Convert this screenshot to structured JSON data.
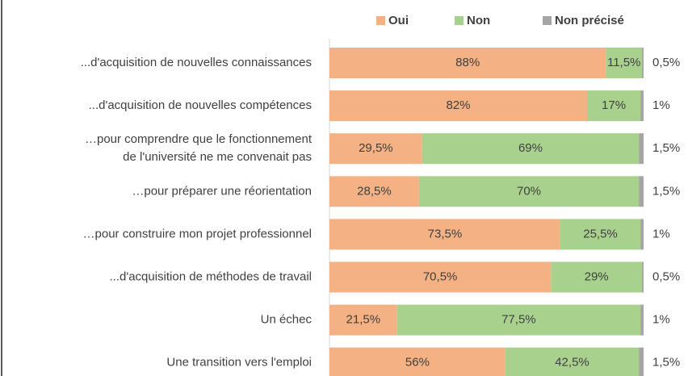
{
  "chart_data": {
    "type": "stacked-barh",
    "categories": [
      "...d'acquisition de nouvelles connaissances",
      "...d'acquisition de nouvelles compétences",
      [
        "…pour comprendre que le fonctionnement",
        "de l'université ne me convenait pas"
      ],
      "…pour préparer une réorientation",
      "…pour construire mon projet professionnel",
      "...d'acquisition de méthodes de travail",
      "Un échec",
      "Une transition vers l'emploi"
    ],
    "series": [
      {
        "name": "Oui",
        "color": "#f4b183",
        "values": [
          88,
          82,
          29.5,
          28.5,
          73.5,
          70.5,
          21.5,
          56
        ],
        "value_labels": [
          "88%",
          "82%",
          "29,5%",
          "28,5%",
          "73,5%",
          "70,5%",
          "21,5%",
          "56%"
        ]
      },
      {
        "name": "Non",
        "color": "#a9d18e",
        "values": [
          11.5,
          17,
          69,
          70,
          25.5,
          29,
          77.5,
          42.5
        ],
        "value_labels": [
          "11,5%",
          "17%",
          "69%",
          "70%",
          "25,5%",
          "29%",
          "77,5%",
          "42,5%"
        ]
      },
      {
        "name": "Non précisé",
        "color": "#a5a5a5",
        "values": [
          0.5,
          1,
          1.5,
          1.5,
          1,
          0.5,
          1,
          1.5
        ],
        "value_labels": [
          "0,5%",
          "1%",
          "1,5%",
          "1,5%",
          "1%",
          "0,5%",
          "1%",
          "1,5%"
        ]
      }
    ],
    "xlim": [
      0,
      100
    ],
    "legend": "top"
  }
}
